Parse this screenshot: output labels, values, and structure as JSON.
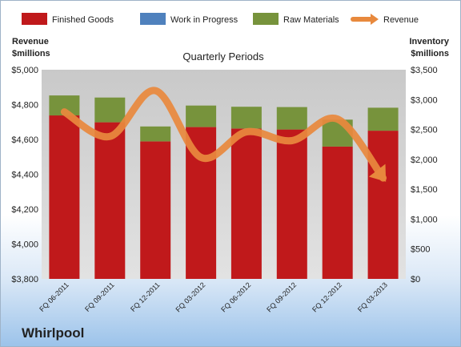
{
  "company": "Whirlpool",
  "chart_data": {
    "type": "bar",
    "stacked": true,
    "subtitle": "Quarterly Periods",
    "categories": [
      "FQ 06-2011",
      "FQ 09-2011",
      "FQ 12-2011",
      "FQ 03-2012",
      "FQ 06-2012",
      "FQ 09-2012",
      "FQ 12-2012",
      "FQ 03-2013"
    ],
    "series": [
      {
        "name": "Finished Goods",
        "axis": "right",
        "color": "#c0191b",
        "values": [
          2735,
          2620,
          2300,
          2540,
          2515,
          2500,
          2215,
          2480
        ]
      },
      {
        "name": "Work in Progress",
        "axis": "right",
        "color": "#4f81bd",
        "values": [
          0,
          0,
          0,
          0,
          0,
          0,
          0,
          0
        ]
      },
      {
        "name": "Raw Materials",
        "axis": "right",
        "color": "#77933c",
        "values": [
          335,
          415,
          250,
          360,
          365,
          375,
          450,
          385
        ]
      },
      {
        "name": "Revenue",
        "axis": "left",
        "type": "line",
        "color": "#e8893d",
        "values": [
          4758,
          4617,
          4880,
          4497,
          4643,
          4593,
          4717,
          4379
        ]
      }
    ],
    "y_left": {
      "label_line1": "Revenue",
      "label_line2": "$millions",
      "min": 3800,
      "max": 5000,
      "step": 200,
      "ticks": [
        "$3,800",
        "$4,000",
        "$4,200",
        "$4,400",
        "$4,600",
        "$4,800",
        "$5,000"
      ]
    },
    "y_right": {
      "label_line1": "Inventory",
      "label_line2": "$millions",
      "min": 0,
      "max": 3500,
      "step": 500,
      "ticks": [
        "$0",
        "$500",
        "$1,000",
        "$1,500",
        "$2,000",
        "$2,500",
        "$3,000",
        "$3,500"
      ]
    },
    "legend_position": "top",
    "grid": false,
    "plot_background": "#c8c8c8"
  }
}
